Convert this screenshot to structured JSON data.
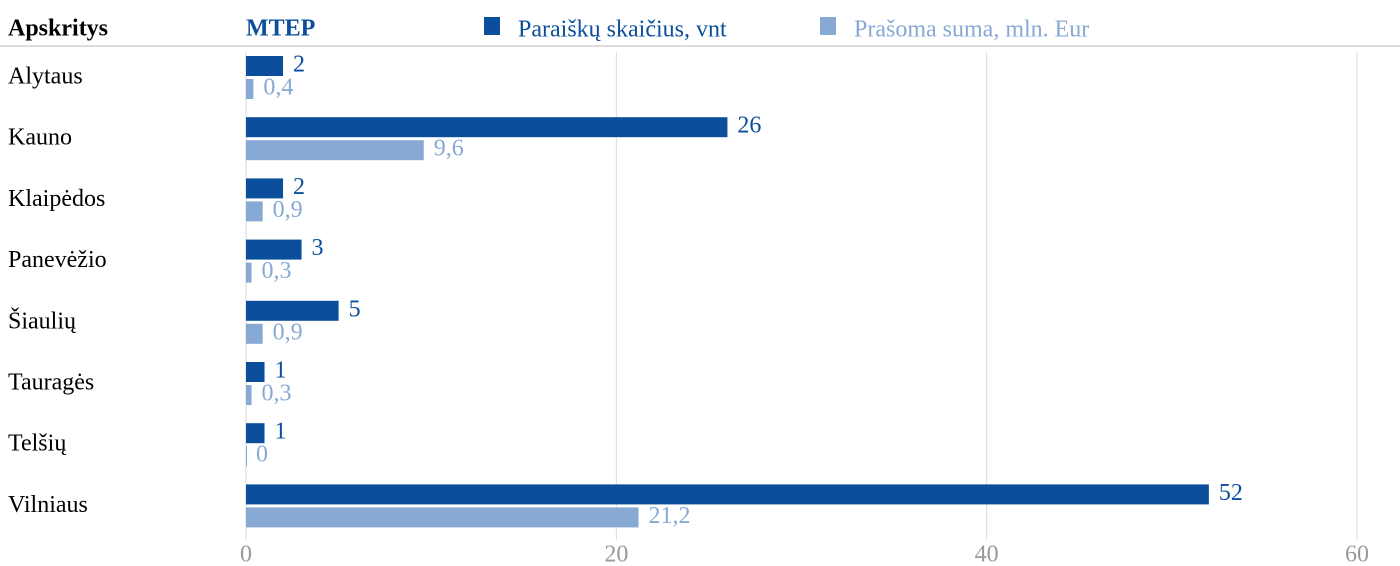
{
  "chart_data": {
    "type": "hbar",
    "title": "MTEP",
    "y_label": "Apskritys",
    "categories": [
      "Alytaus",
      "Kauno",
      "Klaipėdos",
      "Panevėžio",
      "Šiaulių",
      "Tauragės",
      "Telšių",
      "Vilniaus"
    ],
    "series": [
      {
        "name": "Paraiškų skaičius, vnt",
        "color": "#0b4f9c",
        "values": [
          2,
          26,
          2,
          3,
          5,
          1,
          1,
          52
        ]
      },
      {
        "name": "Prašoma suma, mln. Eur",
        "color": "#87a9d4",
        "values": [
          0.4,
          9.6,
          0.9,
          0.3,
          0.9,
          0.3,
          0,
          21.2
        ],
        "value_labels": [
          "0,4",
          "9,6",
          "0,9",
          "0,3",
          "0,9",
          "0,3",
          "0",
          "21,2"
        ]
      }
    ],
    "xlim": [
      0,
      60
    ],
    "xticks": [
      0,
      20,
      40,
      60
    ],
    "grid": true
  }
}
